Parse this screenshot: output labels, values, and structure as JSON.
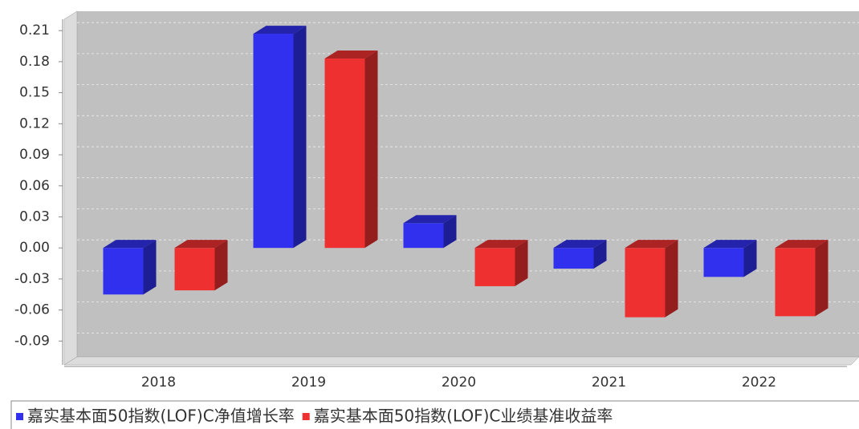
{
  "chart_data": {
    "type": "bar3d",
    "categories": [
      "2018",
      "2019",
      "2020",
      "2021",
      "2022"
    ],
    "series": [
      {
        "name": "嘉实基本面50指数(LOF)C净值增长率",
        "color": "#3030ee",
        "values": [
          -0.045,
          0.207,
          0.024,
          -0.02,
          -0.028
        ]
      },
      {
        "name": "嘉实基本面50指数(LOF)C业绩基准收益率",
        "color": "#ee3030",
        "values": [
          -0.041,
          0.183,
          -0.037,
          -0.067,
          -0.066
        ]
      }
    ],
    "ylim": [
      -0.113,
      0.221
    ],
    "yticks": [
      0.21,
      0.18,
      0.15,
      0.12,
      0.09,
      0.06,
      0.03,
      {
        "value": 0,
        "label": "0.00"
      },
      -0.03,
      -0.06,
      -0.09
    ],
    "grid": true
  }
}
